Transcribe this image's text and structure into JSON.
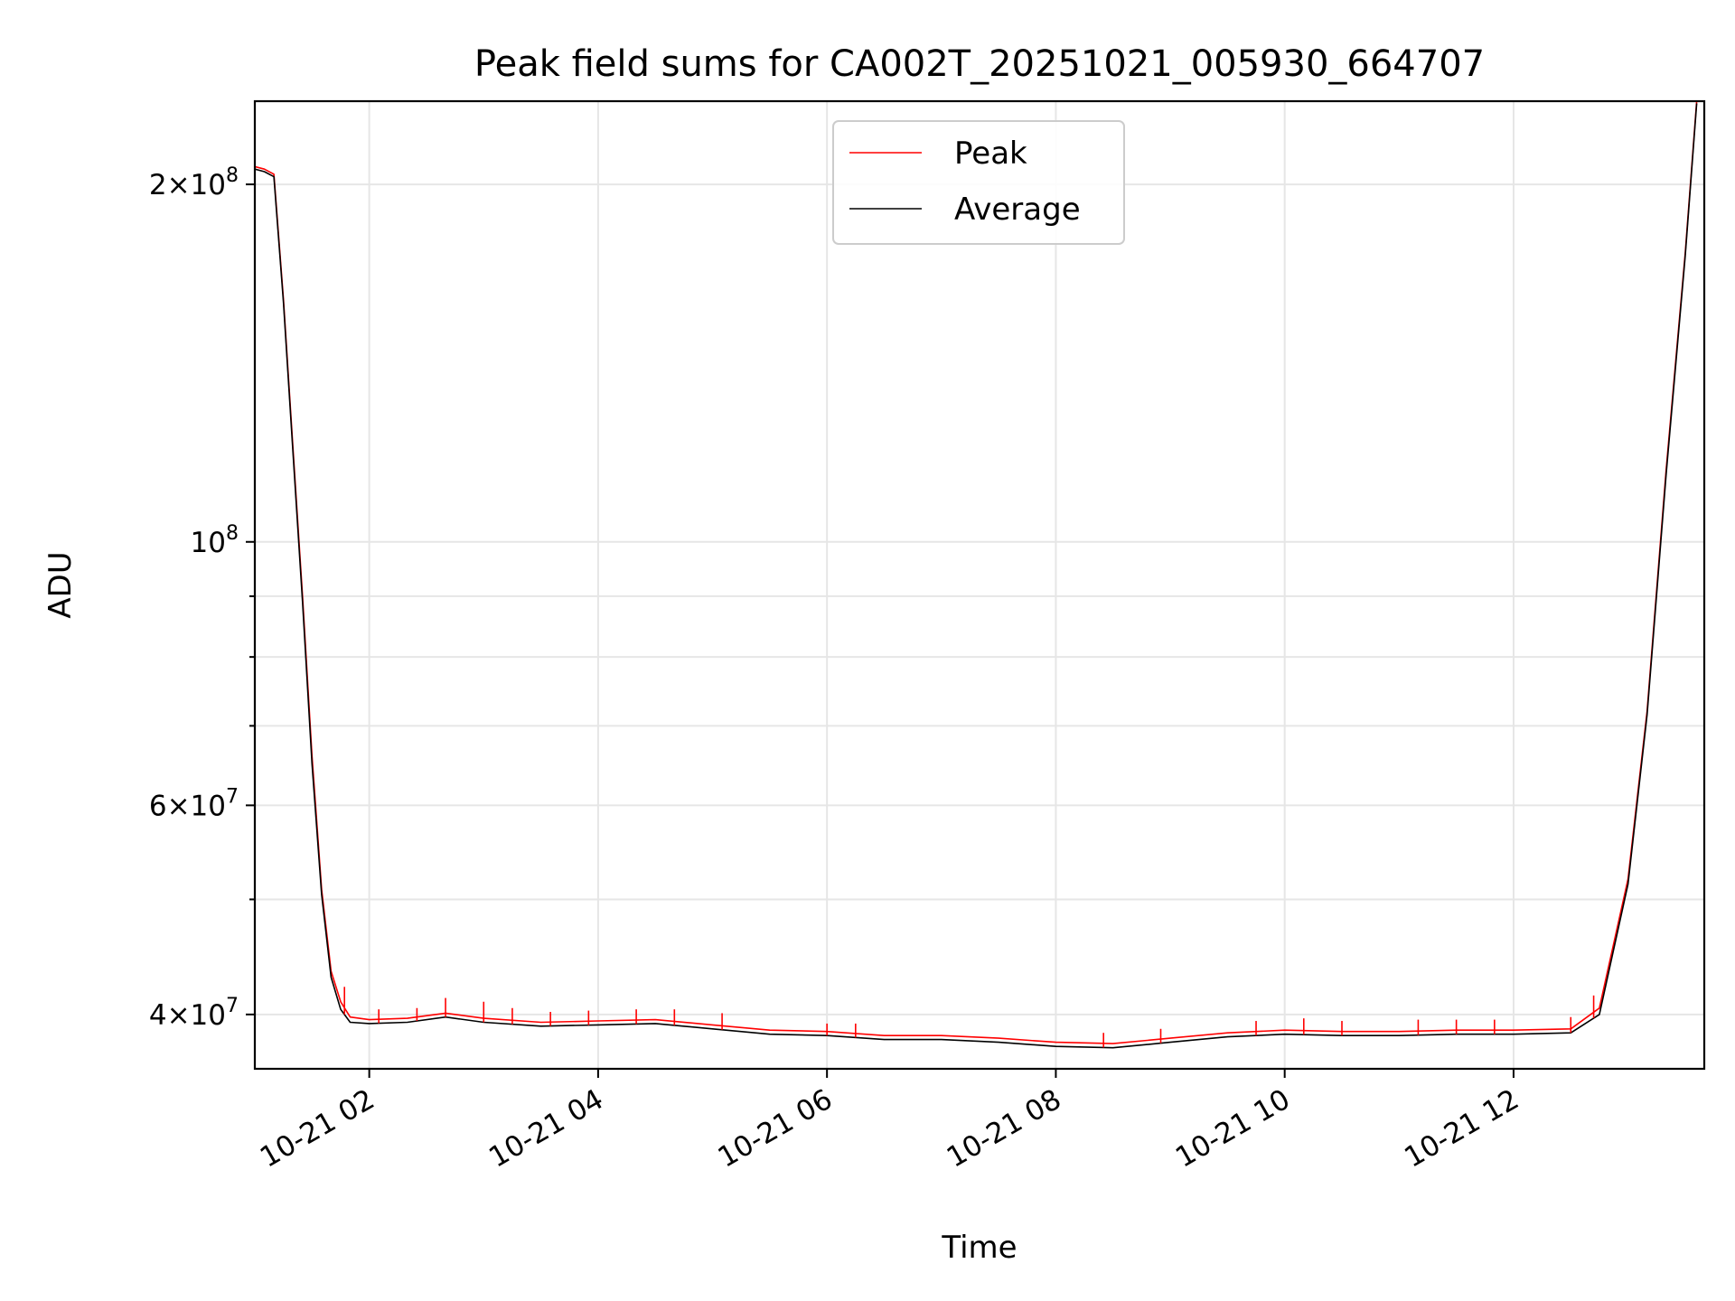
{
  "chart_data": {
    "type": "line",
    "title": "Peak field sums for CA002T_20251021_005930_664707",
    "xlabel": "Time",
    "ylabel": "ADU",
    "yscale": "log",
    "xlim": [
      "2025-10-21T01:00",
      "2025-10-21T13:40"
    ],
    "ylim": [
      36000000,
      235000000
    ],
    "grid": true,
    "legend_position": "top-center",
    "x_ticks": [
      {
        "value": "2025-10-21T02:00",
        "label": "10-21 02"
      },
      {
        "value": "2025-10-21T04:00",
        "label": "10-21 04"
      },
      {
        "value": "2025-10-21T06:00",
        "label": "10-21 06"
      },
      {
        "value": "2025-10-21T08:00",
        "label": "10-21 08"
      },
      {
        "value": "2025-10-21T10:00",
        "label": "10-21 10"
      },
      {
        "value": "2025-10-21T12:00",
        "label": "10-21 12"
      }
    ],
    "y_major_ticks": [
      {
        "value": 40000000,
        "mantissa": "4",
        "exponent": "7"
      },
      {
        "value": 60000000,
        "mantissa": "6",
        "exponent": "7"
      },
      {
        "value": 100000000,
        "mantissa": "",
        "exponent": "8"
      },
      {
        "value": 200000000,
        "mantissa": "2",
        "exponent": "8"
      }
    ],
    "y_minor_ticks": [
      50000000,
      70000000,
      80000000,
      90000000
    ],
    "series": [
      {
        "name": "Peak",
        "color": "#ff0000",
        "points": [
          [
            "2025-10-21T01:00",
            207000000
          ],
          [
            "2025-10-21T01:05",
            206000000
          ],
          [
            "2025-10-21T01:10",
            204000000
          ],
          [
            "2025-10-21T01:15",
            160000000
          ],
          [
            "2025-10-21T01:20",
            120000000
          ],
          [
            "2025-10-21T01:25",
            90000000
          ],
          [
            "2025-10-21T01:30",
            66000000
          ],
          [
            "2025-10-21T01:35",
            51000000
          ],
          [
            "2025-10-21T01:40",
            43500000
          ],
          [
            "2025-10-21T01:45",
            41000000
          ],
          [
            "2025-10-21T01:50",
            39800000
          ],
          [
            "2025-10-21T02:00",
            39600000
          ],
          [
            "2025-10-21T02:20",
            39700000
          ],
          [
            "2025-10-21T02:40",
            40100000
          ],
          [
            "2025-10-21T03:00",
            39700000
          ],
          [
            "2025-10-21T03:30",
            39400000
          ],
          [
            "2025-10-21T04:00",
            39500000
          ],
          [
            "2025-10-21T04:30",
            39600000
          ],
          [
            "2025-10-21T05:00",
            39200000
          ],
          [
            "2025-10-21T05:30",
            38800000
          ],
          [
            "2025-10-21T06:00",
            38700000
          ],
          [
            "2025-10-21T06:30",
            38400000
          ],
          [
            "2025-10-21T07:00",
            38400000
          ],
          [
            "2025-10-21T07:30",
            38200000
          ],
          [
            "2025-10-21T08:00",
            37900000
          ],
          [
            "2025-10-21T08:30",
            37800000
          ],
          [
            "2025-10-21T09:00",
            38200000
          ],
          [
            "2025-10-21T09:30",
            38600000
          ],
          [
            "2025-10-21T10:00",
            38800000
          ],
          [
            "2025-10-21T10:30",
            38700000
          ],
          [
            "2025-10-21T11:00",
            38700000
          ],
          [
            "2025-10-21T11:30",
            38800000
          ],
          [
            "2025-10-21T12:00",
            38800000
          ],
          [
            "2025-10-21T12:30",
            38900000
          ],
          [
            "2025-10-21T12:45",
            40500000
          ],
          [
            "2025-10-21T13:00",
            52000000
          ],
          [
            "2025-10-21T13:10",
            72000000
          ],
          [
            "2025-10-21T13:20",
            115000000
          ],
          [
            "2025-10-21T13:30",
            175000000
          ],
          [
            "2025-10-21T13:36",
            235000000
          ]
        ],
        "spikes": [
          [
            "2025-10-21T01:47",
            42200000
          ],
          [
            "2025-10-21T02:05",
            40400000
          ],
          [
            "2025-10-21T02:25",
            40500000
          ],
          [
            "2025-10-21T02:40",
            41300000
          ],
          [
            "2025-10-21T03:00",
            41000000
          ],
          [
            "2025-10-21T03:15",
            40500000
          ],
          [
            "2025-10-21T03:35",
            40200000
          ],
          [
            "2025-10-21T03:55",
            40300000
          ],
          [
            "2025-10-21T04:20",
            40400000
          ],
          [
            "2025-10-21T04:40",
            40400000
          ],
          [
            "2025-10-21T05:05",
            40100000
          ],
          [
            "2025-10-21T06:00",
            39300000
          ],
          [
            "2025-10-21T06:15",
            39300000
          ],
          [
            "2025-10-21T08:25",
            38600000
          ],
          [
            "2025-10-21T08:55",
            38900000
          ],
          [
            "2025-10-21T09:45",
            39500000
          ],
          [
            "2025-10-21T10:10",
            39700000
          ],
          [
            "2025-10-21T10:30",
            39500000
          ],
          [
            "2025-10-21T11:10",
            39600000
          ],
          [
            "2025-10-21T11:30",
            39600000
          ],
          [
            "2025-10-21T11:50",
            39600000
          ],
          [
            "2025-10-21T12:30",
            39800000
          ],
          [
            "2025-10-21T12:42",
            41500000
          ]
        ]
      },
      {
        "name": "Average",
        "color": "#000000",
        "points": [
          [
            "2025-10-21T01:00",
            206000000
          ],
          [
            "2025-10-21T01:05",
            205000000
          ],
          [
            "2025-10-21T01:10",
            203000000
          ],
          [
            "2025-10-21T01:15",
            159000000
          ],
          [
            "2025-10-21T01:20",
            119000000
          ],
          [
            "2025-10-21T01:25",
            89000000
          ],
          [
            "2025-10-21T01:30",
            65000000
          ],
          [
            "2025-10-21T01:35",
            50500000
          ],
          [
            "2025-10-21T01:40",
            43000000
          ],
          [
            "2025-10-21T01:45",
            40400000
          ],
          [
            "2025-10-21T01:50",
            39400000
          ],
          [
            "2025-10-21T02:00",
            39300000
          ],
          [
            "2025-10-21T02:20",
            39400000
          ],
          [
            "2025-10-21T02:40",
            39800000
          ],
          [
            "2025-10-21T03:00",
            39400000
          ],
          [
            "2025-10-21T03:30",
            39100000
          ],
          [
            "2025-10-21T04:00",
            39200000
          ],
          [
            "2025-10-21T04:30",
            39300000
          ],
          [
            "2025-10-21T05:00",
            38900000
          ],
          [
            "2025-10-21T05:30",
            38500000
          ],
          [
            "2025-10-21T06:00",
            38400000
          ],
          [
            "2025-10-21T06:30",
            38100000
          ],
          [
            "2025-10-21T07:00",
            38100000
          ],
          [
            "2025-10-21T07:30",
            37900000
          ],
          [
            "2025-10-21T08:00",
            37600000
          ],
          [
            "2025-10-21T08:30",
            37500000
          ],
          [
            "2025-10-21T09:00",
            37900000
          ],
          [
            "2025-10-21T09:30",
            38300000
          ],
          [
            "2025-10-21T10:00",
            38500000
          ],
          [
            "2025-10-21T10:30",
            38400000
          ],
          [
            "2025-10-21T11:00",
            38400000
          ],
          [
            "2025-10-21T11:30",
            38500000
          ],
          [
            "2025-10-21T12:00",
            38500000
          ],
          [
            "2025-10-21T12:30",
            38600000
          ],
          [
            "2025-10-21T12:45",
            40000000
          ],
          [
            "2025-10-21T13:00",
            51500000
          ],
          [
            "2025-10-21T13:10",
            71500000
          ],
          [
            "2025-10-21T13:20",
            114000000
          ],
          [
            "2025-10-21T13:30",
            174000000
          ],
          [
            "2025-10-21T13:36",
            234000000
          ]
        ]
      }
    ]
  }
}
